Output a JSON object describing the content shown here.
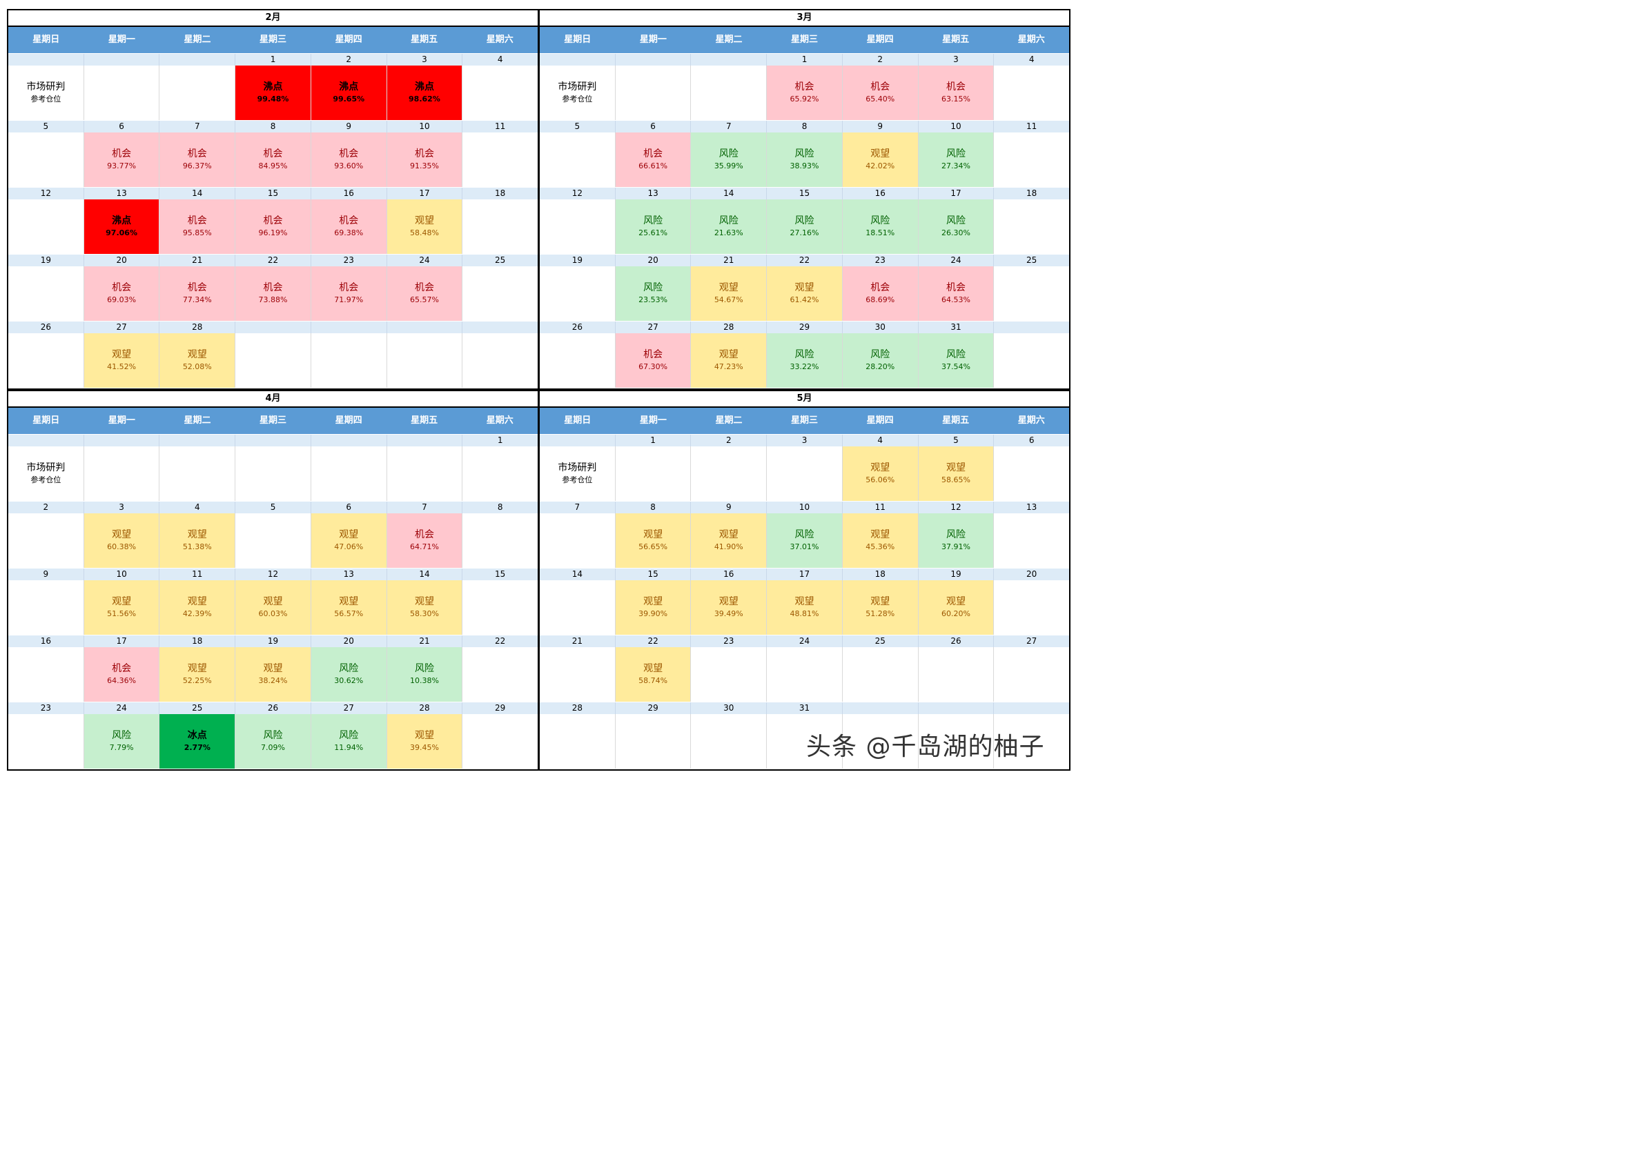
{
  "weekdays": [
    "星期日",
    "星期一",
    "星期二",
    "星期三",
    "星期四",
    "星期五",
    "星期六"
  ],
  "header_cell": {
    "label": "市场研判",
    "sub": "参考仓位"
  },
  "signal_colors": {
    "机会": "#ffc7ce",
    "观望": "#ffeb9c",
    "风险": "#c6efce",
    "沸点": "#ff0000",
    "冰点": "#00b050"
  },
  "watermark": "头条 @千岛湖的柚子",
  "months": [
    {
      "title": "2月",
      "weeks": [
        {
          "days": [
            "",
            "",
            "",
            "1",
            "2",
            "3",
            "4"
          ],
          "cells": [
            {
              "hdr": true
            },
            null,
            null,
            {
              "s": "沸点",
              "p": "99.48%"
            },
            {
              "s": "沸点",
              "p": "99.65%"
            },
            {
              "s": "沸点",
              "p": "98.62%"
            },
            null
          ]
        },
        {
          "days": [
            "5",
            "6",
            "7",
            "8",
            "9",
            "10",
            "11"
          ],
          "cells": [
            null,
            {
              "s": "机会",
              "p": "93.77%"
            },
            {
              "s": "机会",
              "p": "96.37%"
            },
            {
              "s": "机会",
              "p": "84.95%"
            },
            {
              "s": "机会",
              "p": "93.60%"
            },
            {
              "s": "机会",
              "p": "91.35%"
            },
            null
          ]
        },
        {
          "days": [
            "12",
            "13",
            "14",
            "15",
            "16",
            "17",
            "18"
          ],
          "cells": [
            null,
            {
              "s": "沸点",
              "p": "97.06%"
            },
            {
              "s": "机会",
              "p": "95.85%"
            },
            {
              "s": "机会",
              "p": "96.19%"
            },
            {
              "s": "机会",
              "p": "69.38%"
            },
            {
              "s": "观望",
              "p": "58.48%"
            },
            null
          ]
        },
        {
          "days": [
            "19",
            "20",
            "21",
            "22",
            "23",
            "24",
            "25"
          ],
          "cells": [
            null,
            {
              "s": "机会",
              "p": "69.03%"
            },
            {
              "s": "机会",
              "p": "77.34%"
            },
            {
              "s": "机会",
              "p": "73.88%"
            },
            {
              "s": "机会",
              "p": "71.97%"
            },
            {
              "s": "机会",
              "p": "65.57%"
            },
            null
          ]
        },
        {
          "days": [
            "26",
            "27",
            "28",
            "",
            "",
            "",
            ""
          ],
          "cells": [
            null,
            {
              "s": "观望",
              "p": "41.52%"
            },
            {
              "s": "观望",
              "p": "52.08%"
            },
            null,
            null,
            null,
            null
          ]
        }
      ]
    },
    {
      "title": "3月",
      "weeks": [
        {
          "days": [
            "",
            "",
            "",
            "1",
            "2",
            "3",
            "4"
          ],
          "cells": [
            {
              "hdr": true
            },
            null,
            null,
            {
              "s": "机会",
              "p": "65.92%"
            },
            {
              "s": "机会",
              "p": "65.40%"
            },
            {
              "s": "机会",
              "p": "63.15%"
            },
            null
          ]
        },
        {
          "days": [
            "5",
            "6",
            "7",
            "8",
            "9",
            "10",
            "11"
          ],
          "cells": [
            null,
            {
              "s": "机会",
              "p": "66.61%"
            },
            {
              "s": "风险",
              "p": "35.99%"
            },
            {
              "s": "风险",
              "p": "38.93%"
            },
            {
              "s": "观望",
              "p": "42.02%"
            },
            {
              "s": "风险",
              "p": "27.34%"
            },
            null
          ]
        },
        {
          "days": [
            "12",
            "13",
            "14",
            "15",
            "16",
            "17",
            "18"
          ],
          "cells": [
            null,
            {
              "s": "风险",
              "p": "25.61%"
            },
            {
              "s": "风险",
              "p": "21.63%"
            },
            {
              "s": "风险",
              "p": "27.16%"
            },
            {
              "s": "风险",
              "p": "18.51%"
            },
            {
              "s": "风险",
              "p": "26.30%"
            },
            null
          ]
        },
        {
          "days": [
            "19",
            "20",
            "21",
            "22",
            "23",
            "24",
            "25"
          ],
          "cells": [
            null,
            {
              "s": "风险",
              "p": "23.53%"
            },
            {
              "s": "观望",
              "p": "54.67%"
            },
            {
              "s": "观望",
              "p": "61.42%"
            },
            {
              "s": "机会",
              "p": "68.69%"
            },
            {
              "s": "机会",
              "p": "64.53%"
            },
            null
          ]
        },
        {
          "days": [
            "26",
            "27",
            "28",
            "29",
            "30",
            "31",
            ""
          ],
          "cells": [
            null,
            {
              "s": "机会",
              "p": "67.30%"
            },
            {
              "s": "观望",
              "p": "47.23%"
            },
            {
              "s": "风险",
              "p": "33.22%"
            },
            {
              "s": "风险",
              "p": "28.20%"
            },
            {
              "s": "风险",
              "p": "37.54%"
            },
            null
          ]
        }
      ]
    },
    {
      "title": "4月",
      "weeks": [
        {
          "days": [
            "",
            "",
            "",
            "",
            "",
            "",
            "1"
          ],
          "cells": [
            {
              "hdr": true
            },
            null,
            null,
            null,
            null,
            null,
            null
          ]
        },
        {
          "days": [
            "2",
            "3",
            "4",
            "5",
            "6",
            "7",
            "8"
          ],
          "cells": [
            null,
            {
              "s": "观望",
              "p": "60.38%"
            },
            {
              "s": "观望",
              "p": "51.38%"
            },
            null,
            {
              "s": "观望",
              "p": "47.06%"
            },
            {
              "s": "机会",
              "p": "64.71%"
            },
            null
          ]
        },
        {
          "days": [
            "9",
            "10",
            "11",
            "12",
            "13",
            "14",
            "15"
          ],
          "cells": [
            null,
            {
              "s": "观望",
              "p": "51.56%"
            },
            {
              "s": "观望",
              "p": "42.39%"
            },
            {
              "s": "观望",
              "p": "60.03%"
            },
            {
              "s": "观望",
              "p": "56.57%"
            },
            {
              "s": "观望",
              "p": "58.30%"
            },
            null
          ]
        },
        {
          "days": [
            "16",
            "17",
            "18",
            "19",
            "20",
            "21",
            "22"
          ],
          "cells": [
            null,
            {
              "s": "机会",
              "p": "64.36%"
            },
            {
              "s": "观望",
              "p": "52.25%"
            },
            {
              "s": "观望",
              "p": "38.24%"
            },
            {
              "s": "风险",
              "p": "30.62%"
            },
            {
              "s": "风险",
              "p": "10.38%"
            },
            null
          ]
        },
        {
          "days": [
            "23",
            "24",
            "25",
            "26",
            "27",
            "28",
            "29"
          ],
          "cells": [
            null,
            {
              "s": "风险",
              "p": "7.79%"
            },
            {
              "s": "冰点",
              "p": "2.77%"
            },
            {
              "s": "风险",
              "p": "7.09%"
            },
            {
              "s": "风险",
              "p": "11.94%"
            },
            {
              "s": "观望",
              "p": "39.45%"
            },
            null
          ]
        }
      ]
    },
    {
      "title": "5月",
      "weeks": [
        {
          "days": [
            "",
            "1",
            "2",
            "3",
            "4",
            "5",
            "6"
          ],
          "cells": [
            {
              "hdr": true
            },
            null,
            null,
            null,
            {
              "s": "观望",
              "p": "56.06%"
            },
            {
              "s": "观望",
              "p": "58.65%"
            },
            null
          ]
        },
        {
          "days": [
            "7",
            "8",
            "9",
            "10",
            "11",
            "12",
            "13"
          ],
          "cells": [
            null,
            {
              "s": "观望",
              "p": "56.65%"
            },
            {
              "s": "观望",
              "p": "41.90%"
            },
            {
              "s": "风险",
              "p": "37.01%"
            },
            {
              "s": "观望",
              "p": "45.36%"
            },
            {
              "s": "风险",
              "p": "37.91%"
            },
            null
          ]
        },
        {
          "days": [
            "14",
            "15",
            "16",
            "17",
            "18",
            "19",
            "20"
          ],
          "cells": [
            null,
            {
              "s": "观望",
              "p": "39.90%"
            },
            {
              "s": "观望",
              "p": "39.49%"
            },
            {
              "s": "观望",
              "p": "48.81%"
            },
            {
              "s": "观望",
              "p": "51.28%"
            },
            {
              "s": "观望",
              "p": "60.20%"
            },
            null
          ]
        },
        {
          "days": [
            "21",
            "22",
            "23",
            "24",
            "25",
            "26",
            "27"
          ],
          "cells": [
            null,
            {
              "s": "观望",
              "p": "58.74%"
            },
            null,
            null,
            null,
            null,
            null
          ]
        },
        {
          "days": [
            "28",
            "29",
            "30",
            "31",
            "",
            "",
            ""
          ],
          "cells": [
            null,
            null,
            null,
            null,
            null,
            null,
            null
          ]
        }
      ]
    }
  ]
}
